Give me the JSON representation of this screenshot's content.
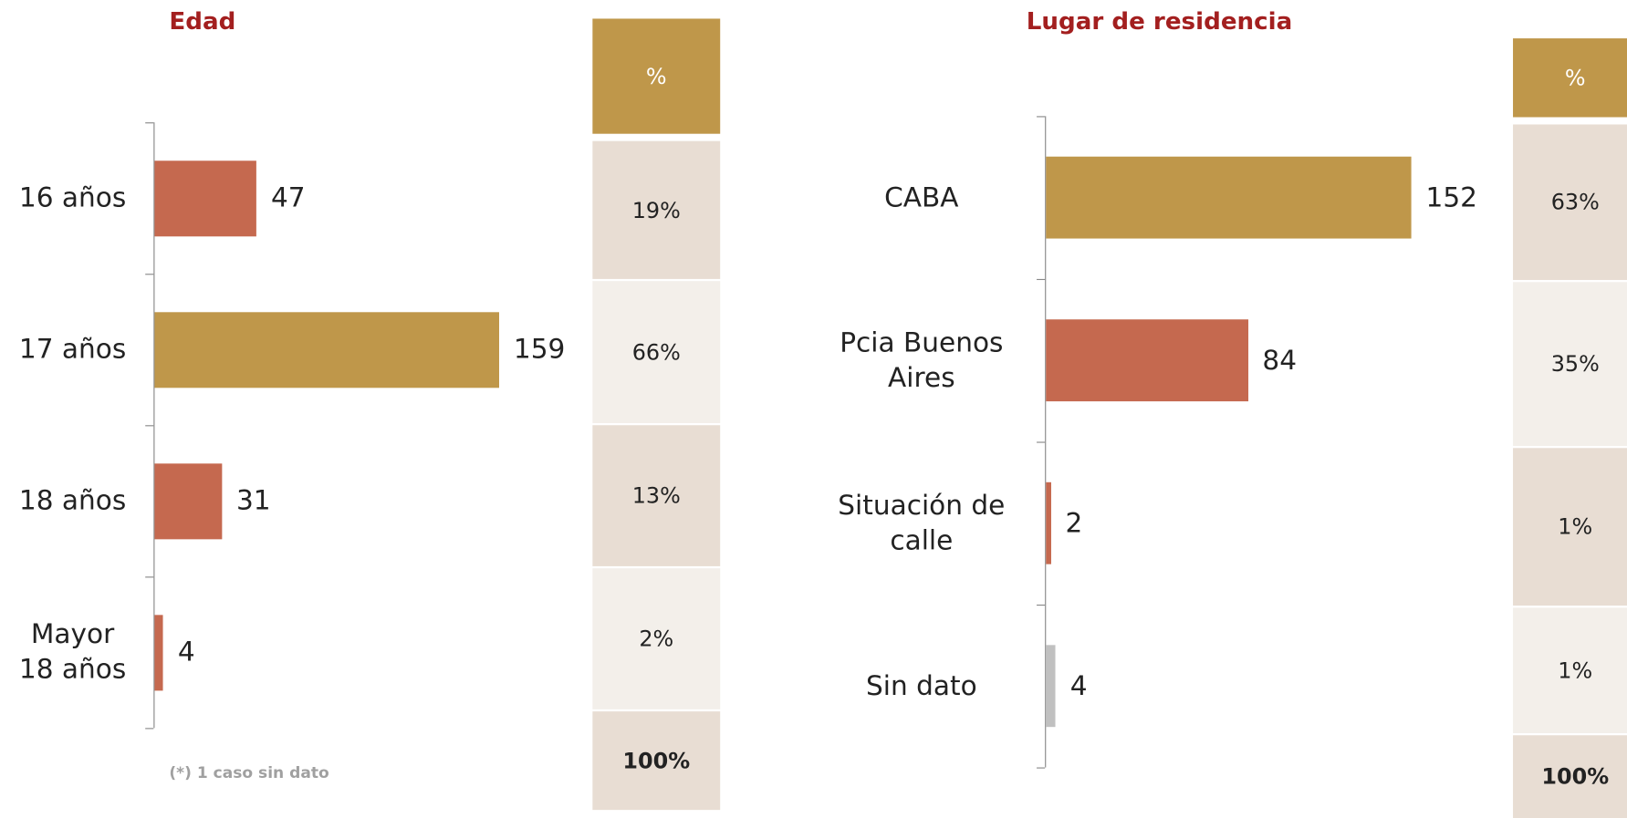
{
  "chart_data": [
    {
      "type": "bar",
      "title": "Edad",
      "categories": [
        "16 años",
        "17 años",
        "18 años",
        "Mayor\n18 años"
      ],
      "values": [
        47,
        159,
        31,
        4
      ],
      "colors": [
        "#c5694f",
        "#bf974a",
        "#c5694f",
        "#c5694f"
      ],
      "note": "(*) 1 caso sin dato",
      "table": {
        "header": "%",
        "rows": [
          "19%",
          "66%",
          "13%",
          "2%"
        ],
        "total": "100%"
      }
    },
    {
      "type": "bar",
      "title": "Lugar de residencia",
      "categories": [
        "CABA",
        "Pcia Buenos\nAires",
        "Situación de\ncalle",
        "Sin dato"
      ],
      "values": [
        152,
        84,
        2,
        4
      ],
      "colors": [
        "#bf974a",
        "#c5694f",
        "#c5694f",
        "#c0c0c0"
      ],
      "table": {
        "header": "%",
        "rows": [
          "63%",
          "35%",
          "1%",
          "1%"
        ],
        "total": "100%"
      }
    }
  ]
}
